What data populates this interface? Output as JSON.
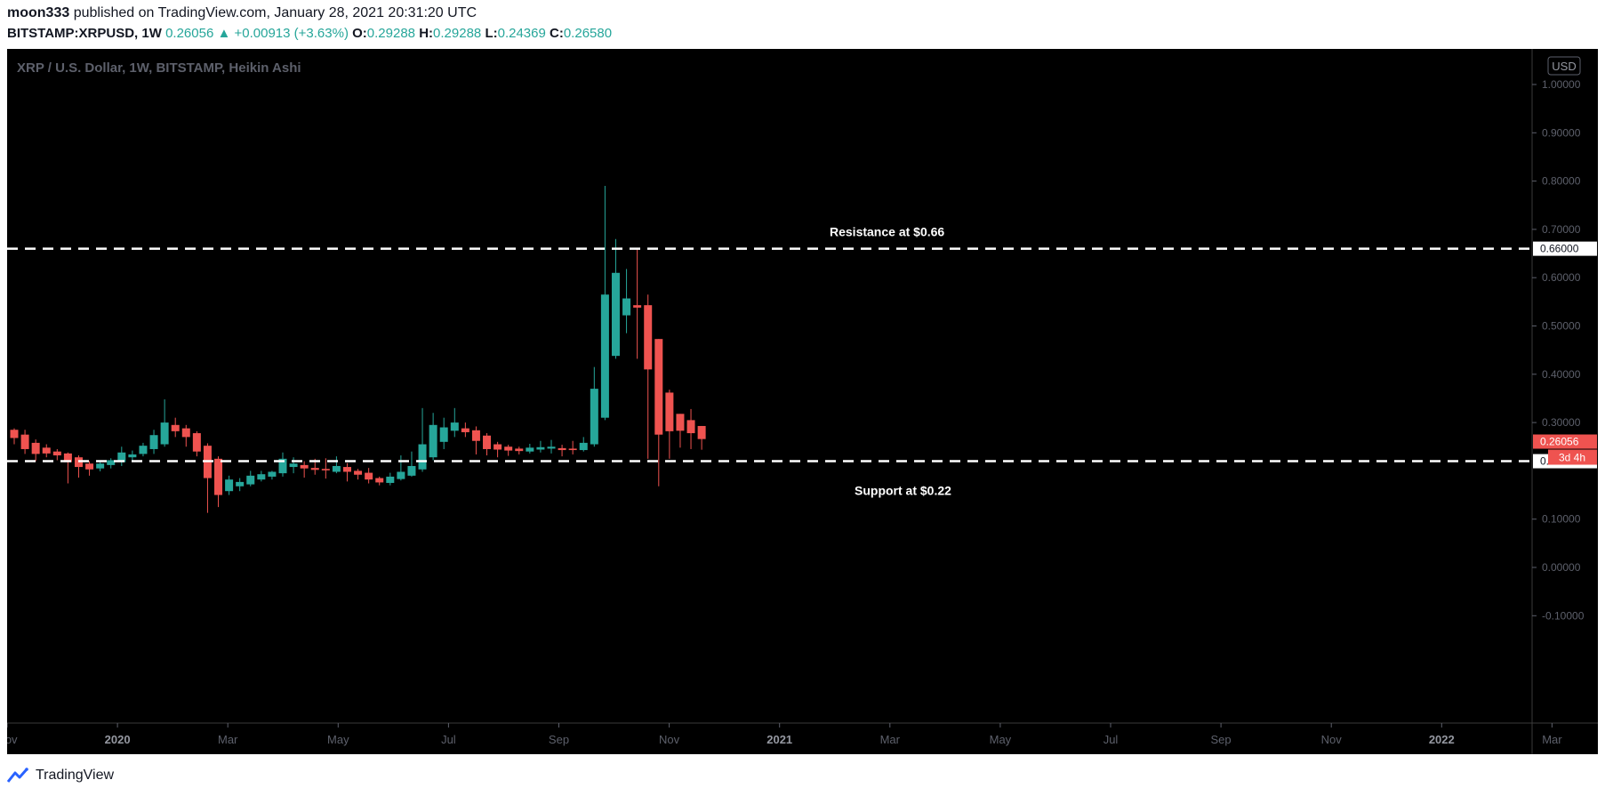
{
  "header": {
    "author": "moon333",
    "published_text": "published on TradingView.com, January 28, 2021 20:31:20 UTC",
    "symbol": "BITSTAMP:XRPUSD, 1W",
    "last": "0.26056",
    "change": "+0.00913 (+3.63%)",
    "o_label": "O:",
    "o": "0.29288",
    "h_label": "H:",
    "h": "0.29288",
    "l_label": "L:",
    "l": "0.24369",
    "c_label": "C:",
    "c": "0.26580"
  },
  "chart_title": "XRP / U.S. Dollar, 1W, BITSTAMP, Heikin Ashi",
  "currency_badge": "USD",
  "countdown": "3d 4h",
  "footer": {
    "brand": "TradingView"
  },
  "colors": {
    "up": "#26a69a",
    "down": "#ef5350",
    "background": "#000000",
    "line": "#ffffff"
  },
  "chart_data": {
    "type": "candlestick",
    "chart_style": "Heikin Ashi",
    "x_tick_labels": [
      "Nov",
      "2020",
      "Mar",
      "May",
      "Jul",
      "Sep",
      "Nov",
      "2021",
      "Mar",
      "May",
      "Jul",
      "Sep",
      "Nov",
      "2022",
      "Mar"
    ],
    "x_range": [
      "2019-11",
      "2022-03"
    ],
    "y_tick_labels": [
      "1.00000",
      "0.90000",
      "0.80000",
      "0.70000",
      "0.60000",
      "0.50000",
      "0.40000",
      "0.30000",
      "0.10000",
      "0.00000",
      "-0.10000"
    ],
    "y_ticks": [
      1.0,
      0.9,
      0.8,
      0.7,
      0.6,
      0.5,
      0.4,
      0.3,
      0.1,
      0.0,
      -0.1
    ],
    "ylim": [
      -0.12,
      1.06
    ],
    "grid": false,
    "price_labels": [
      {
        "value": 0.66,
        "text": "0.66000"
      },
      {
        "value": 0.26056,
        "text": "0.26056"
      },
      {
        "value": 0.22,
        "text": "0.22000"
      }
    ],
    "horizontal_lines": [
      {
        "value": 0.66,
        "label": "Resistance at $0.66"
      },
      {
        "value": 0.22,
        "label": "Support at $0.22"
      }
    ],
    "candles": [
      {
        "o": 0.285,
        "h": 0.288,
        "l": 0.255,
        "c": 0.268
      },
      {
        "o": 0.275,
        "h": 0.285,
        "l": 0.235,
        "c": 0.245
      },
      {
        "o": 0.258,
        "h": 0.265,
        "l": 0.22,
        "c": 0.235
      },
      {
        "o": 0.248,
        "h": 0.255,
        "l": 0.228,
        "c": 0.236
      },
      {
        "o": 0.24,
        "h": 0.245,
        "l": 0.222,
        "c": 0.232
      },
      {
        "o": 0.236,
        "h": 0.238,
        "l": 0.174,
        "c": 0.218
      },
      {
        "o": 0.228,
        "h": 0.232,
        "l": 0.186,
        "c": 0.208
      },
      {
        "o": 0.215,
        "h": 0.22,
        "l": 0.19,
        "c": 0.203
      },
      {
        "o": 0.205,
        "h": 0.218,
        "l": 0.199,
        "c": 0.215
      },
      {
        "o": 0.212,
        "h": 0.226,
        "l": 0.205,
        "c": 0.222
      },
      {
        "o": 0.218,
        "h": 0.25,
        "l": 0.21,
        "c": 0.238
      },
      {
        "o": 0.228,
        "h": 0.242,
        "l": 0.22,
        "c": 0.234
      },
      {
        "o": 0.235,
        "h": 0.258,
        "l": 0.23,
        "c": 0.252
      },
      {
        "o": 0.245,
        "h": 0.285,
        "l": 0.235,
        "c": 0.274
      },
      {
        "o": 0.255,
        "h": 0.348,
        "l": 0.25,
        "c": 0.3
      },
      {
        "o": 0.295,
        "h": 0.31,
        "l": 0.27,
        "c": 0.282
      },
      {
        "o": 0.288,
        "h": 0.295,
        "l": 0.25,
        "c": 0.27
      },
      {
        "o": 0.278,
        "h": 0.282,
        "l": 0.23,
        "c": 0.24
      },
      {
        "o": 0.252,
        "h": 0.257,
        "l": 0.113,
        "c": 0.185
      },
      {
        "o": 0.225,
        "h": 0.23,
        "l": 0.125,
        "c": 0.15
      },
      {
        "o": 0.158,
        "h": 0.19,
        "l": 0.15,
        "c": 0.182
      },
      {
        "o": 0.168,
        "h": 0.185,
        "l": 0.158,
        "c": 0.177
      },
      {
        "o": 0.172,
        "h": 0.2,
        "l": 0.168,
        "c": 0.19
      },
      {
        "o": 0.182,
        "h": 0.2,
        "l": 0.178,
        "c": 0.193
      },
      {
        "o": 0.188,
        "h": 0.2,
        "l": 0.182,
        "c": 0.198
      },
      {
        "o": 0.195,
        "h": 0.238,
        "l": 0.188,
        "c": 0.225
      },
      {
        "o": 0.208,
        "h": 0.228,
        "l": 0.195,
        "c": 0.215
      },
      {
        "o": 0.212,
        "h": 0.22,
        "l": 0.186,
        "c": 0.205
      },
      {
        "o": 0.206,
        "h": 0.225,
        "l": 0.192,
        "c": 0.202
      },
      {
        "o": 0.204,
        "h": 0.226,
        "l": 0.184,
        "c": 0.201
      },
      {
        "o": 0.198,
        "h": 0.23,
        "l": 0.195,
        "c": 0.21
      },
      {
        "o": 0.208,
        "h": 0.216,
        "l": 0.178,
        "c": 0.198
      },
      {
        "o": 0.2,
        "h": 0.204,
        "l": 0.182,
        "c": 0.192
      },
      {
        "o": 0.196,
        "h": 0.206,
        "l": 0.174,
        "c": 0.182
      },
      {
        "o": 0.185,
        "h": 0.188,
        "l": 0.17,
        "c": 0.176
      },
      {
        "o": 0.175,
        "h": 0.196,
        "l": 0.17,
        "c": 0.188
      },
      {
        "o": 0.183,
        "h": 0.232,
        "l": 0.18,
        "c": 0.198
      },
      {
        "o": 0.19,
        "h": 0.24,
        "l": 0.188,
        "c": 0.21
      },
      {
        "o": 0.203,
        "h": 0.33,
        "l": 0.198,
        "c": 0.255
      },
      {
        "o": 0.228,
        "h": 0.32,
        "l": 0.222,
        "c": 0.295
      },
      {
        "o": 0.26,
        "h": 0.31,
        "l": 0.245,
        "c": 0.29
      },
      {
        "o": 0.283,
        "h": 0.33,
        "l": 0.27,
        "c": 0.3
      },
      {
        "o": 0.288,
        "h": 0.3,
        "l": 0.27,
        "c": 0.28
      },
      {
        "o": 0.284,
        "h": 0.292,
        "l": 0.234,
        "c": 0.262
      },
      {
        "o": 0.273,
        "h": 0.278,
        "l": 0.232,
        "c": 0.245
      },
      {
        "o": 0.255,
        "h": 0.26,
        "l": 0.228,
        "c": 0.244
      },
      {
        "o": 0.25,
        "h": 0.254,
        "l": 0.231,
        "c": 0.242
      },
      {
        "o": 0.246,
        "h": 0.25,
        "l": 0.234,
        "c": 0.241
      },
      {
        "o": 0.24,
        "h": 0.256,
        "l": 0.236,
        "c": 0.248
      },
      {
        "o": 0.244,
        "h": 0.262,
        "l": 0.238,
        "c": 0.249
      },
      {
        "o": 0.246,
        "h": 0.264,
        "l": 0.236,
        "c": 0.25
      },
      {
        "o": 0.247,
        "h": 0.254,
        "l": 0.23,
        "c": 0.243
      },
      {
        "o": 0.246,
        "h": 0.262,
        "l": 0.234,
        "c": 0.243
      },
      {
        "o": 0.243,
        "h": 0.27,
        "l": 0.24,
        "c": 0.258
      },
      {
        "o": 0.255,
        "h": 0.415,
        "l": 0.25,
        "c": 0.37
      },
      {
        "o": 0.31,
        "h": 0.79,
        "l": 0.305,
        "c": 0.565
      },
      {
        "o": 0.438,
        "h": 0.68,
        "l": 0.432,
        "c": 0.61
      },
      {
        "o": 0.522,
        "h": 0.618,
        "l": 0.485,
        "c": 0.557
      },
      {
        "o": 0.543,
        "h": 0.662,
        "l": 0.432,
        "c": 0.538
      },
      {
        "o": 0.543,
        "h": 0.565,
        "l": 0.225,
        "c": 0.41
      },
      {
        "o": 0.473,
        "h": 0.473,
        "l": 0.168,
        "c": 0.275
      },
      {
        "o": 0.362,
        "h": 0.368,
        "l": 0.225,
        "c": 0.282
      },
      {
        "o": 0.318,
        "h": 0.318,
        "l": 0.248,
        "c": 0.283
      },
      {
        "o": 0.305,
        "h": 0.328,
        "l": 0.245,
        "c": 0.278
      },
      {
        "o": 0.29288,
        "h": 0.29288,
        "l": 0.24369,
        "c": 0.2658
      }
    ]
  },
  "annotations": {
    "resistance": {
      "value": 0.66,
      "text": "Resistance at $0.66"
    },
    "support": {
      "value": 0.22,
      "text": "Support at $0.22"
    }
  }
}
